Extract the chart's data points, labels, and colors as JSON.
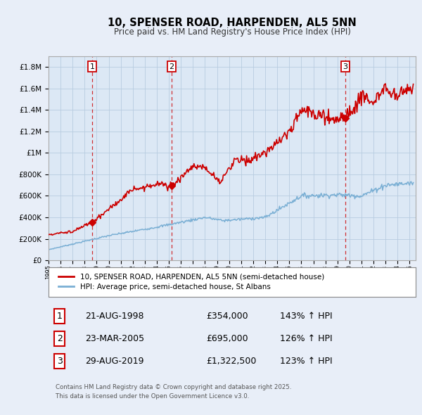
{
  "title": "10, SPENSER ROAD, HARPENDEN, AL5 5NN",
  "subtitle": "Price paid vs. HM Land Registry's House Price Index (HPI)",
  "bg_color": "#e8eef8",
  "plot_bg_color": "#dce8f5",
  "grid_color": "#b8cce0",
  "sale_color": "#cc0000",
  "hpi_color": "#7aafd4",
  "ylim": [
    0,
    1900000
  ],
  "yticks": [
    0,
    200000,
    400000,
    600000,
    800000,
    1000000,
    1200000,
    1400000,
    1600000,
    1800000
  ],
  "ytick_labels": [
    "£0",
    "£200K",
    "£400K",
    "£600K",
    "£800K",
    "£1M",
    "£1.2M",
    "£1.4M",
    "£1.6M",
    "£1.8M"
  ],
  "sale_dates": [
    1998.64,
    2005.23,
    2019.66
  ],
  "sale_prices": [
    354000,
    695000,
    1322500
  ],
  "sale_labels": [
    "1",
    "2",
    "3"
  ],
  "vline_color": "#cc0000",
  "legend_sale_label": "10, SPENSER ROAD, HARPENDEN, AL5 5NN (semi-detached house)",
  "legend_hpi_label": "HPI: Average price, semi-detached house, St Albans",
  "table_rows": [
    [
      "1",
      "21-AUG-1998",
      "£354,000",
      "143% ↑ HPI"
    ],
    [
      "2",
      "23-MAR-2005",
      "£695,000",
      "126% ↑ HPI"
    ],
    [
      "3",
      "29-AUG-2019",
      "£1,322,500",
      "123% ↑ HPI"
    ]
  ],
  "footnote": "Contains HM Land Registry data © Crown copyright and database right 2025.\nThis data is licensed under the Open Government Licence v3.0.",
  "xmin": 1995,
  "xmax": 2025.5
}
